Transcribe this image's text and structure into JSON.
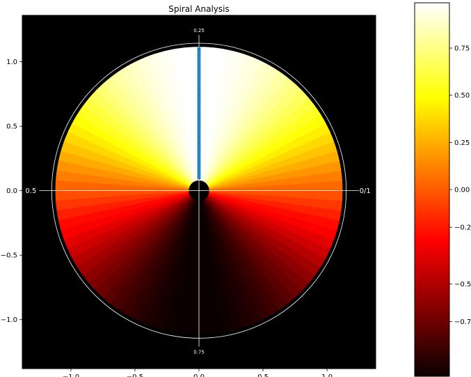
{
  "chart_data": {
    "type": "polar-heatmap",
    "title": "Spiral Analysis",
    "xlabel": "",
    "ylabel": "",
    "xlim": [
      -1.38,
      1.38
    ],
    "ylim": [
      -1.38,
      1.36
    ],
    "x_ticks": [
      -1.0,
      -0.5,
      0.0,
      0.5,
      1.0
    ],
    "x_tick_labels": [
      "−1.0",
      "−0.5",
      "0.0",
      "0.5",
      "1.0"
    ],
    "y_ticks": [
      1.0,
      0.5,
      0.0,
      -0.5,
      -1.0
    ],
    "y_tick_labels": [
      "1.0",
      "0.5",
      "0.0",
      "−0.5",
      "−1.0"
    ],
    "disk": {
      "inner_radius": 0.08,
      "outer_radius": 1.12,
      "background": "#000000"
    },
    "value_function": "sin(angle)",
    "reference_circle": {
      "radius": 1.15,
      "color": "#ffffff"
    },
    "phase_labels": [
      {
        "text": "0/1",
        "angle_deg": 0
      },
      {
        "text": "0.25",
        "angle_deg": 90
      },
      {
        "text": "0.5",
        "angle_deg": 180
      },
      {
        "text": "0.75",
        "angle_deg": 270
      }
    ],
    "series": [
      {
        "type": "scatter",
        "color": "#1f77b4",
        "x": 0.0,
        "y_range": [
          0.1,
          1.1
        ],
        "count": 60
      }
    ],
    "colorbar": {
      "cmap": "hot",
      "vmin": -0.99,
      "vmax": 0.99,
      "ticks": [
        0.75,
        0.5,
        0.25,
        0.0,
        -0.2,
        -0.5,
        -0.7
      ],
      "tick_labels": [
        "0.75",
        "0.50",
        "0.25",
        "0.00",
        "−0.2",
        "−0.5",
        "−0.7"
      ]
    },
    "grid": false,
    "legend": "none"
  }
}
